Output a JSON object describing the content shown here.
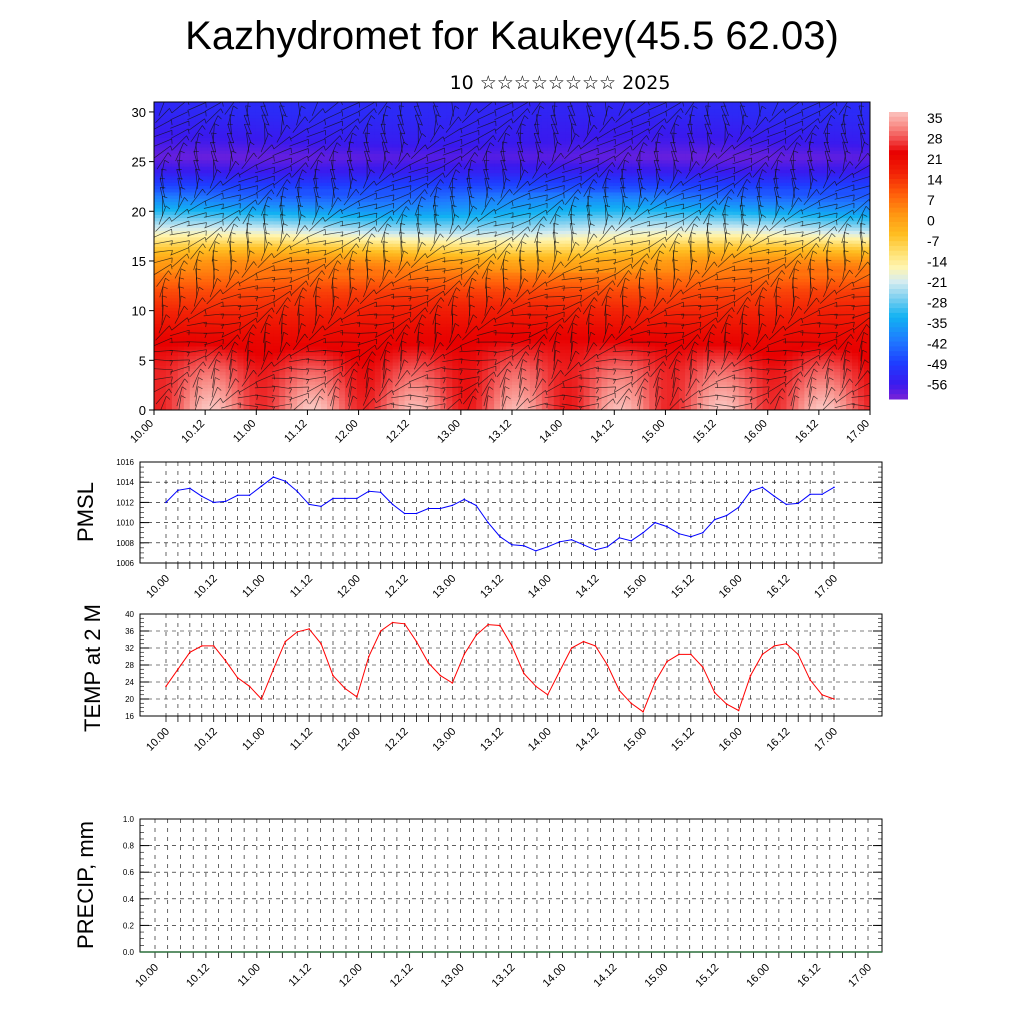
{
  "title": "Kazhydromet for Kaukey(45.5 62.03)",
  "subtitle": "10 ☆☆☆☆☆☆☆☆ 2025",
  "time_labels": [
    "10.00",
    "10.12",
    "11.00",
    "11.12",
    "12.00",
    "12.12",
    "13.00",
    "13.12",
    "14.00",
    "14.12",
    "15.00",
    "15.12",
    "16.00",
    "16.12",
    "17.00"
  ],
  "chart_data": [
    {
      "type": "heatmap",
      "name": "temperature-height-section",
      "xlabel": "",
      "ylabel": "",
      "ylim": [
        0,
        31
      ],
      "y_ticks": [
        0,
        5,
        10,
        15,
        20,
        25,
        30
      ],
      "colorbar": {
        "labels": [
          "35",
          "28",
          "21",
          "14",
          "7",
          "0",
          "-7",
          "-14",
          "-21",
          "-28",
          "-35",
          "-42",
          "-49",
          "-56"
        ],
        "range": [
          -60,
          38
        ]
      },
      "profile": [
        [
          0,
          32
        ],
        [
          4,
          28
        ],
        [
          8,
          22
        ],
        [
          12,
          13
        ],
        [
          15,
          2
        ],
        [
          16.5,
          -8
        ],
        [
          18,
          -20
        ],
        [
          20,
          -33
        ],
        [
          22,
          -44
        ],
        [
          24,
          -54
        ],
        [
          25.5,
          -58
        ],
        [
          27,
          -55
        ],
        [
          30,
          -52
        ]
      ],
      "diurnal_surface_amplitude": 6,
      "wind_barbs": true
    },
    {
      "type": "line",
      "name": "PMSL",
      "ylabel": "PMSL",
      "ylim": [
        1006,
        1016
      ],
      "y_ticks": [
        1006,
        1008,
        1010,
        1012,
        1014,
        1016
      ],
      "color": "#0000ff",
      "grid": true,
      "values": [
        1012.0,
        1013.2,
        1013.4,
        1012.6,
        1012.0,
        1012.1,
        1012.7,
        1012.7,
        1013.6,
        1014.5,
        1014.1,
        1013.1,
        1011.8,
        1011.6,
        1012.4,
        1012.4,
        1012.4,
        1013.1,
        1013.0,
        1011.8,
        1010.9,
        1010.9,
        1011.4,
        1011.4,
        1011.7,
        1012.3,
        1011.7,
        1010.0,
        1008.6,
        1007.8,
        1007.7,
        1007.2,
        1007.6,
        1008.1,
        1008.3,
        1007.8,
        1007.3,
        1007.6,
        1008.5,
        1008.2,
        1009.0,
        1010.0,
        1009.6,
        1008.9,
        1008.6,
        1009.0,
        1010.3,
        1010.7,
        1011.5,
        1013.1,
        1013.5,
        1012.6,
        1011.8,
        1011.9,
        1012.8,
        1012.8,
        1013.5
      ]
    },
    {
      "type": "line",
      "name": "TEMP at 2 M",
      "ylabel": "TEMP at 2 M",
      "ylim": [
        16,
        40
      ],
      "y_ticks": [
        16,
        20,
        24,
        28,
        32,
        36,
        40
      ],
      "color": "#ff0000",
      "grid": true,
      "values": [
        23.0,
        27.0,
        31.0,
        32.5,
        32.5,
        29.0,
        25.0,
        23.0,
        20.0,
        27.0,
        33.5,
        35.8,
        36.5,
        33.0,
        25.5,
        22.5,
        20.5,
        30.0,
        36.0,
        38.0,
        37.7,
        33.5,
        28.5,
        25.5,
        23.8,
        30.5,
        35.0,
        37.5,
        37.3,
        32.5,
        26.0,
        23.0,
        21.0,
        26.5,
        32.0,
        33.5,
        32.5,
        28.0,
        22.0,
        19.0,
        17.0,
        24.0,
        28.8,
        30.5,
        30.5,
        27.5,
        21.5,
        18.8,
        17.3,
        25.5,
        30.5,
        32.5,
        33.0,
        30.5,
        24.5,
        21.0,
        20.0
      ]
    },
    {
      "type": "bar",
      "name": "PRECIP, mm",
      "ylabel": "PRECIP, mm",
      "ylim": [
        0,
        1
      ],
      "y_ticks": [
        "0.0",
        "0.2",
        "0.4",
        "0.6",
        "0.8",
        "1.0"
      ],
      "grid": true,
      "values": [
        0,
        0,
        0,
        0,
        0,
        0,
        0,
        0,
        0,
        0,
        0,
        0,
        0,
        0,
        0,
        0,
        0,
        0,
        0,
        0,
        0,
        0,
        0,
        0,
        0,
        0,
        0,
        0,
        0,
        0,
        0,
        0,
        0,
        0,
        0,
        0,
        0,
        0,
        0,
        0,
        0,
        0,
        0,
        0,
        0,
        0,
        0,
        0,
        0,
        0,
        0,
        0,
        0,
        0,
        0,
        0,
        0
      ]
    }
  ]
}
